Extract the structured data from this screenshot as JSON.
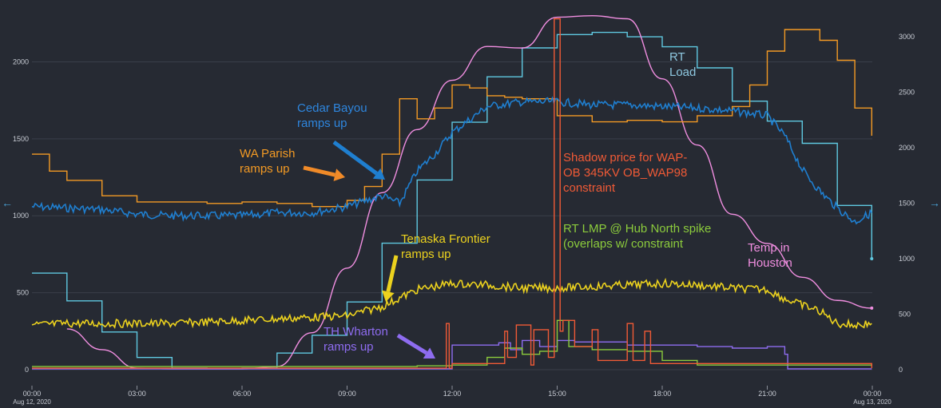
{
  "chart_data": {
    "type": "line",
    "title": "",
    "grid": true,
    "legend": "none",
    "x_axis": {
      "start": "2020-08-12T00:00",
      "end": "2020-08-13T00:00",
      "ticks": [
        "00:00",
        "03:00",
        "06:00",
        "09:00",
        "12:00",
        "15:00",
        "18:00",
        "21:00",
        "00:00"
      ],
      "start_date_label": "Aug 12, 2020",
      "end_date_label": "Aug 13, 2020"
    },
    "y_left": {
      "ticks": [
        0,
        500,
        1000,
        1500,
        2000
      ],
      "range": [
        0,
        2350
      ]
    },
    "y_right": {
      "ticks": [
        0,
        500,
        1000,
        1500,
        2000,
        2500,
        3000
      ],
      "range": [
        0,
        3260
      ]
    },
    "series": [
      {
        "name": "RT Load",
        "axis": "right",
        "color": "#5fc8e0",
        "step": true,
        "x": [
          "00:00",
          "01:00",
          "02:00",
          "03:00",
          "04:00",
          "05:00",
          "06:00",
          "07:00",
          "08:00",
          "09:00",
          "10:00",
          "11:00",
          "12:00",
          "13:00",
          "14:00",
          "15:00",
          "16:00",
          "17:00",
          "18:00",
          "19:00",
          "20:00",
          "21:00",
          "22:00",
          "23:00",
          "23:59"
        ],
        "y": [
          870,
          620,
          340,
          110,
          15,
          10,
          15,
          150,
          310,
          610,
          1140,
          1710,
          2230,
          2640,
          2900,
          3020,
          3040,
          3000,
          2910,
          2720,
          2420,
          2240,
          2040,
          1480,
          1000
        ]
      },
      {
        "name": "Temp in Houston",
        "axis": "left",
        "color": "#f08ee0",
        "step": false,
        "x": [
          "01:00",
          "02:00",
          "03:00",
          "04:00",
          "05:00",
          "06:00",
          "07:00",
          "08:00",
          "09:00",
          "10:00",
          "11:00",
          "12:00",
          "13:00",
          "14:00",
          "15:00",
          "16:00",
          "17:00",
          "18:00",
          "19:00",
          "20:00",
          "21:00",
          "22:00",
          "23:00",
          "23:59"
        ],
        "y": [
          265,
          130,
          10,
          5,
          5,
          5,
          20,
          240,
          660,
          1150,
          1560,
          1880,
          2100,
          2090,
          2290,
          2300,
          2280,
          1890,
          1460,
          1010,
          820,
          600,
          450,
          400
        ]
      },
      {
        "name": "WA Parish",
        "axis": "left",
        "color": "#f39a24",
        "step": true,
        "x": [
          "00:00",
          "00:30",
          "01:00",
          "02:00",
          "03:00",
          "04:00",
          "05:00",
          "06:00",
          "07:00",
          "08:00",
          "09:00",
          "09:30",
          "10:00",
          "10:30",
          "11:00",
          "11:30",
          "12:00",
          "12:30",
          "13:00",
          "13:30",
          "14:00",
          "15:00",
          "16:00",
          "17:00",
          "18:00",
          "19:00",
          "20:00",
          "20:30",
          "21:00",
          "21:30",
          "22:00",
          "22:30",
          "23:00",
          "23:30",
          "23:59"
        ],
        "y": [
          1400,
          1290,
          1230,
          1130,
          1090,
          1090,
          1080,
          1090,
          1080,
          1060,
          1100,
          1190,
          1400,
          1760,
          1630,
          1700,
          1850,
          1830,
          1780,
          1770,
          1760,
          1650,
          1610,
          1620,
          1610,
          1650,
          1710,
          1850,
          2070,
          2210,
          2210,
          2140,
          2010,
          1700,
          1520
        ]
      },
      {
        "name": "Cedar Bayou",
        "axis": "left",
        "color": "#1f7fd0",
        "step": false,
        "noisy": true,
        "x": [
          "00:00",
          "01:00",
          "02:00",
          "03:00",
          "04:00",
          "05:00",
          "06:00",
          "07:00",
          "08:00",
          "09:00",
          "10:00",
          "10:30",
          "11:00",
          "11:30",
          "12:00",
          "13:00",
          "14:00",
          "15:00",
          "16:00",
          "17:00",
          "18:00",
          "19:00",
          "20:00",
          "21:00",
          "21:30",
          "22:00",
          "22:30",
          "23:00",
          "23:30",
          "23:59"
        ],
        "y": [
          1060,
          1050,
          1040,
          1010,
          1000,
          1000,
          1000,
          1020,
          1020,
          1060,
          1130,
          1080,
          1290,
          1400,
          1540,
          1710,
          1740,
          1740,
          1720,
          1720,
          1710,
          1700,
          1680,
          1650,
          1520,
          1300,
          1160,
          1050,
          960,
          1020
        ]
      },
      {
        "name": "Tenaska Frontier",
        "axis": "left",
        "color": "#ecd21e",
        "step": false,
        "noisy": true,
        "x": [
          "00:00",
          "01:00",
          "02:00",
          "03:00",
          "04:00",
          "05:00",
          "06:00",
          "07:00",
          "08:00",
          "09:00",
          "10:00",
          "11:00",
          "11:30",
          "12:00",
          "13:00",
          "14:00",
          "15:00",
          "16:00",
          "17:00",
          "18:00",
          "19:00",
          "20:00",
          "21:00",
          "21:30",
          "22:00",
          "22:30",
          "23:00",
          "23:30",
          "23:59"
        ],
        "y": [
          290,
          300,
          300,
          300,
          300,
          310,
          320,
          330,
          340,
          350,
          410,
          520,
          540,
          560,
          550,
          530,
          530,
          540,
          550,
          560,
          550,
          530,
          520,
          460,
          420,
          380,
          300,
          290,
          300
        ]
      },
      {
        "name": "TH Wharton",
        "axis": "left",
        "color": "#8e6cf0",
        "step": true,
        "x": [
          "00:00",
          "11:50",
          "12:00",
          "13:20",
          "13:40",
          "14:00",
          "14:30",
          "15:00",
          "15:30",
          "17:00",
          "19:00",
          "20:00",
          "21:00",
          "21:30",
          "21:35",
          "23:59"
        ],
        "y": [
          5,
          5,
          160,
          175,
          130,
          190,
          150,
          190,
          180,
          160,
          150,
          140,
          150,
          100,
          5,
          5
        ]
      },
      {
        "name": "RT LMP @ Hub North spike",
        "axis": "left",
        "color": "#8ccc3c",
        "step": true,
        "x": [
          "00:00",
          "11:00",
          "12:00",
          "13:00",
          "13:30",
          "14:00",
          "14:30",
          "15:00",
          "15:20",
          "16:00",
          "17:00",
          "18:00",
          "19:00",
          "23:59"
        ],
        "y": [
          20,
          25,
          30,
          80,
          140,
          100,
          120,
          320,
          150,
          130,
          120,
          60,
          30,
          20
        ]
      },
      {
        "name": "Shadow price for WAP-OB 345KV OB_WAP98 constraint",
        "axis": "left",
        "color": "#f05a36",
        "step": true,
        "x": [
          "00:00",
          "11:40",
          "11:50",
          "11:55",
          "12:00",
          "13:30",
          "13:35",
          "13:50",
          "14:15",
          "14:20",
          "14:45",
          "14:55",
          "14:58",
          "15:05",
          "15:10",
          "15:30",
          "16:00",
          "16:10",
          "17:00",
          "17:10",
          "17:30",
          "17:40",
          "23:59"
        ],
        "y": [
          10,
          10,
          300,
          10,
          40,
          250,
          80,
          290,
          30,
          260,
          80,
          2280,
          2280,
          250,
          320,
          150,
          260,
          60,
          300,
          60,
          250,
          40,
          10
        ]
      }
    ],
    "annotations": [
      {
        "text": [
          "Cedar Bayou",
          "ramps up"
        ],
        "color": "#2e86de",
        "arrow": true,
        "arrow_color": "#1f7fd0"
      },
      {
        "text": [
          "WA Parish",
          "ramps up"
        ],
        "color": "#f39a24",
        "arrow": true,
        "arrow_color": "#f08a28"
      },
      {
        "text": [
          "Tenaska Frontier",
          "ramps up"
        ],
        "color": "#ecd21e",
        "arrow": true,
        "arrow_color": "#ecd21e"
      },
      {
        "text": [
          "TH Wharton",
          "ramps up"
        ],
        "color": "#8e6cf0",
        "arrow": true,
        "arrow_color": "#8e6cf0"
      },
      {
        "text": [
          "Shadow price for WAP-",
          "OB 345KV OB_WAP98",
          "constraint"
        ],
        "color": "#f05a36",
        "arrow": false
      },
      {
        "text": [
          "RT LMP @ Hub North spike",
          "(overlaps w/ constraint"
        ],
        "color": "#8ccc3c",
        "arrow": false
      },
      {
        "text": [
          "Temp in",
          "Houston"
        ],
        "color": "#f08ee0",
        "arrow": false
      },
      {
        "text": [
          "RT",
          "Load"
        ],
        "color": "#8ec8e0",
        "arrow": false
      }
    ]
  }
}
